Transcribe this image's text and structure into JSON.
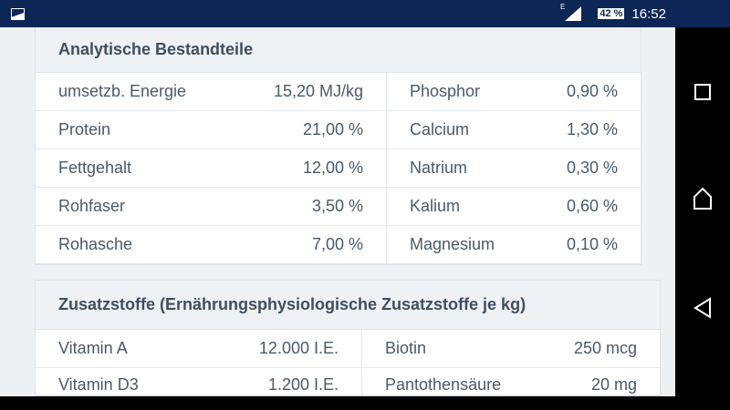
{
  "status": {
    "time": "16:52",
    "battery": "42 %",
    "network": "E"
  },
  "card1": {
    "title": "Analytische Bestandteile",
    "rows": [
      [
        "umsetzb. Energie",
        "15,20 MJ/kg",
        "Phosphor",
        "0,90 %"
      ],
      [
        "Protein",
        "21,00 %",
        "Calcium",
        "1,30 %"
      ],
      [
        "Fettgehalt",
        "12,00 %",
        "Natrium",
        "0,30 %"
      ],
      [
        "Rohfaser",
        "3,50 %",
        "Kalium",
        "0,60 %"
      ],
      [
        "Rohasche",
        "7,00 %",
        "Magnesium",
        "0,10 %"
      ]
    ]
  },
  "card2": {
    "title": "Zusatzstoffe (Ernährungsphysiologische Zusatzstoffe je kg)",
    "rows": [
      [
        "Vitamin A",
        "12.000 I.E.",
        "Biotin",
        "250 mcg"
      ],
      [
        "Vitamin D3",
        "1.200 I.E.",
        "Pantothensäure",
        "20 mg"
      ]
    ]
  }
}
